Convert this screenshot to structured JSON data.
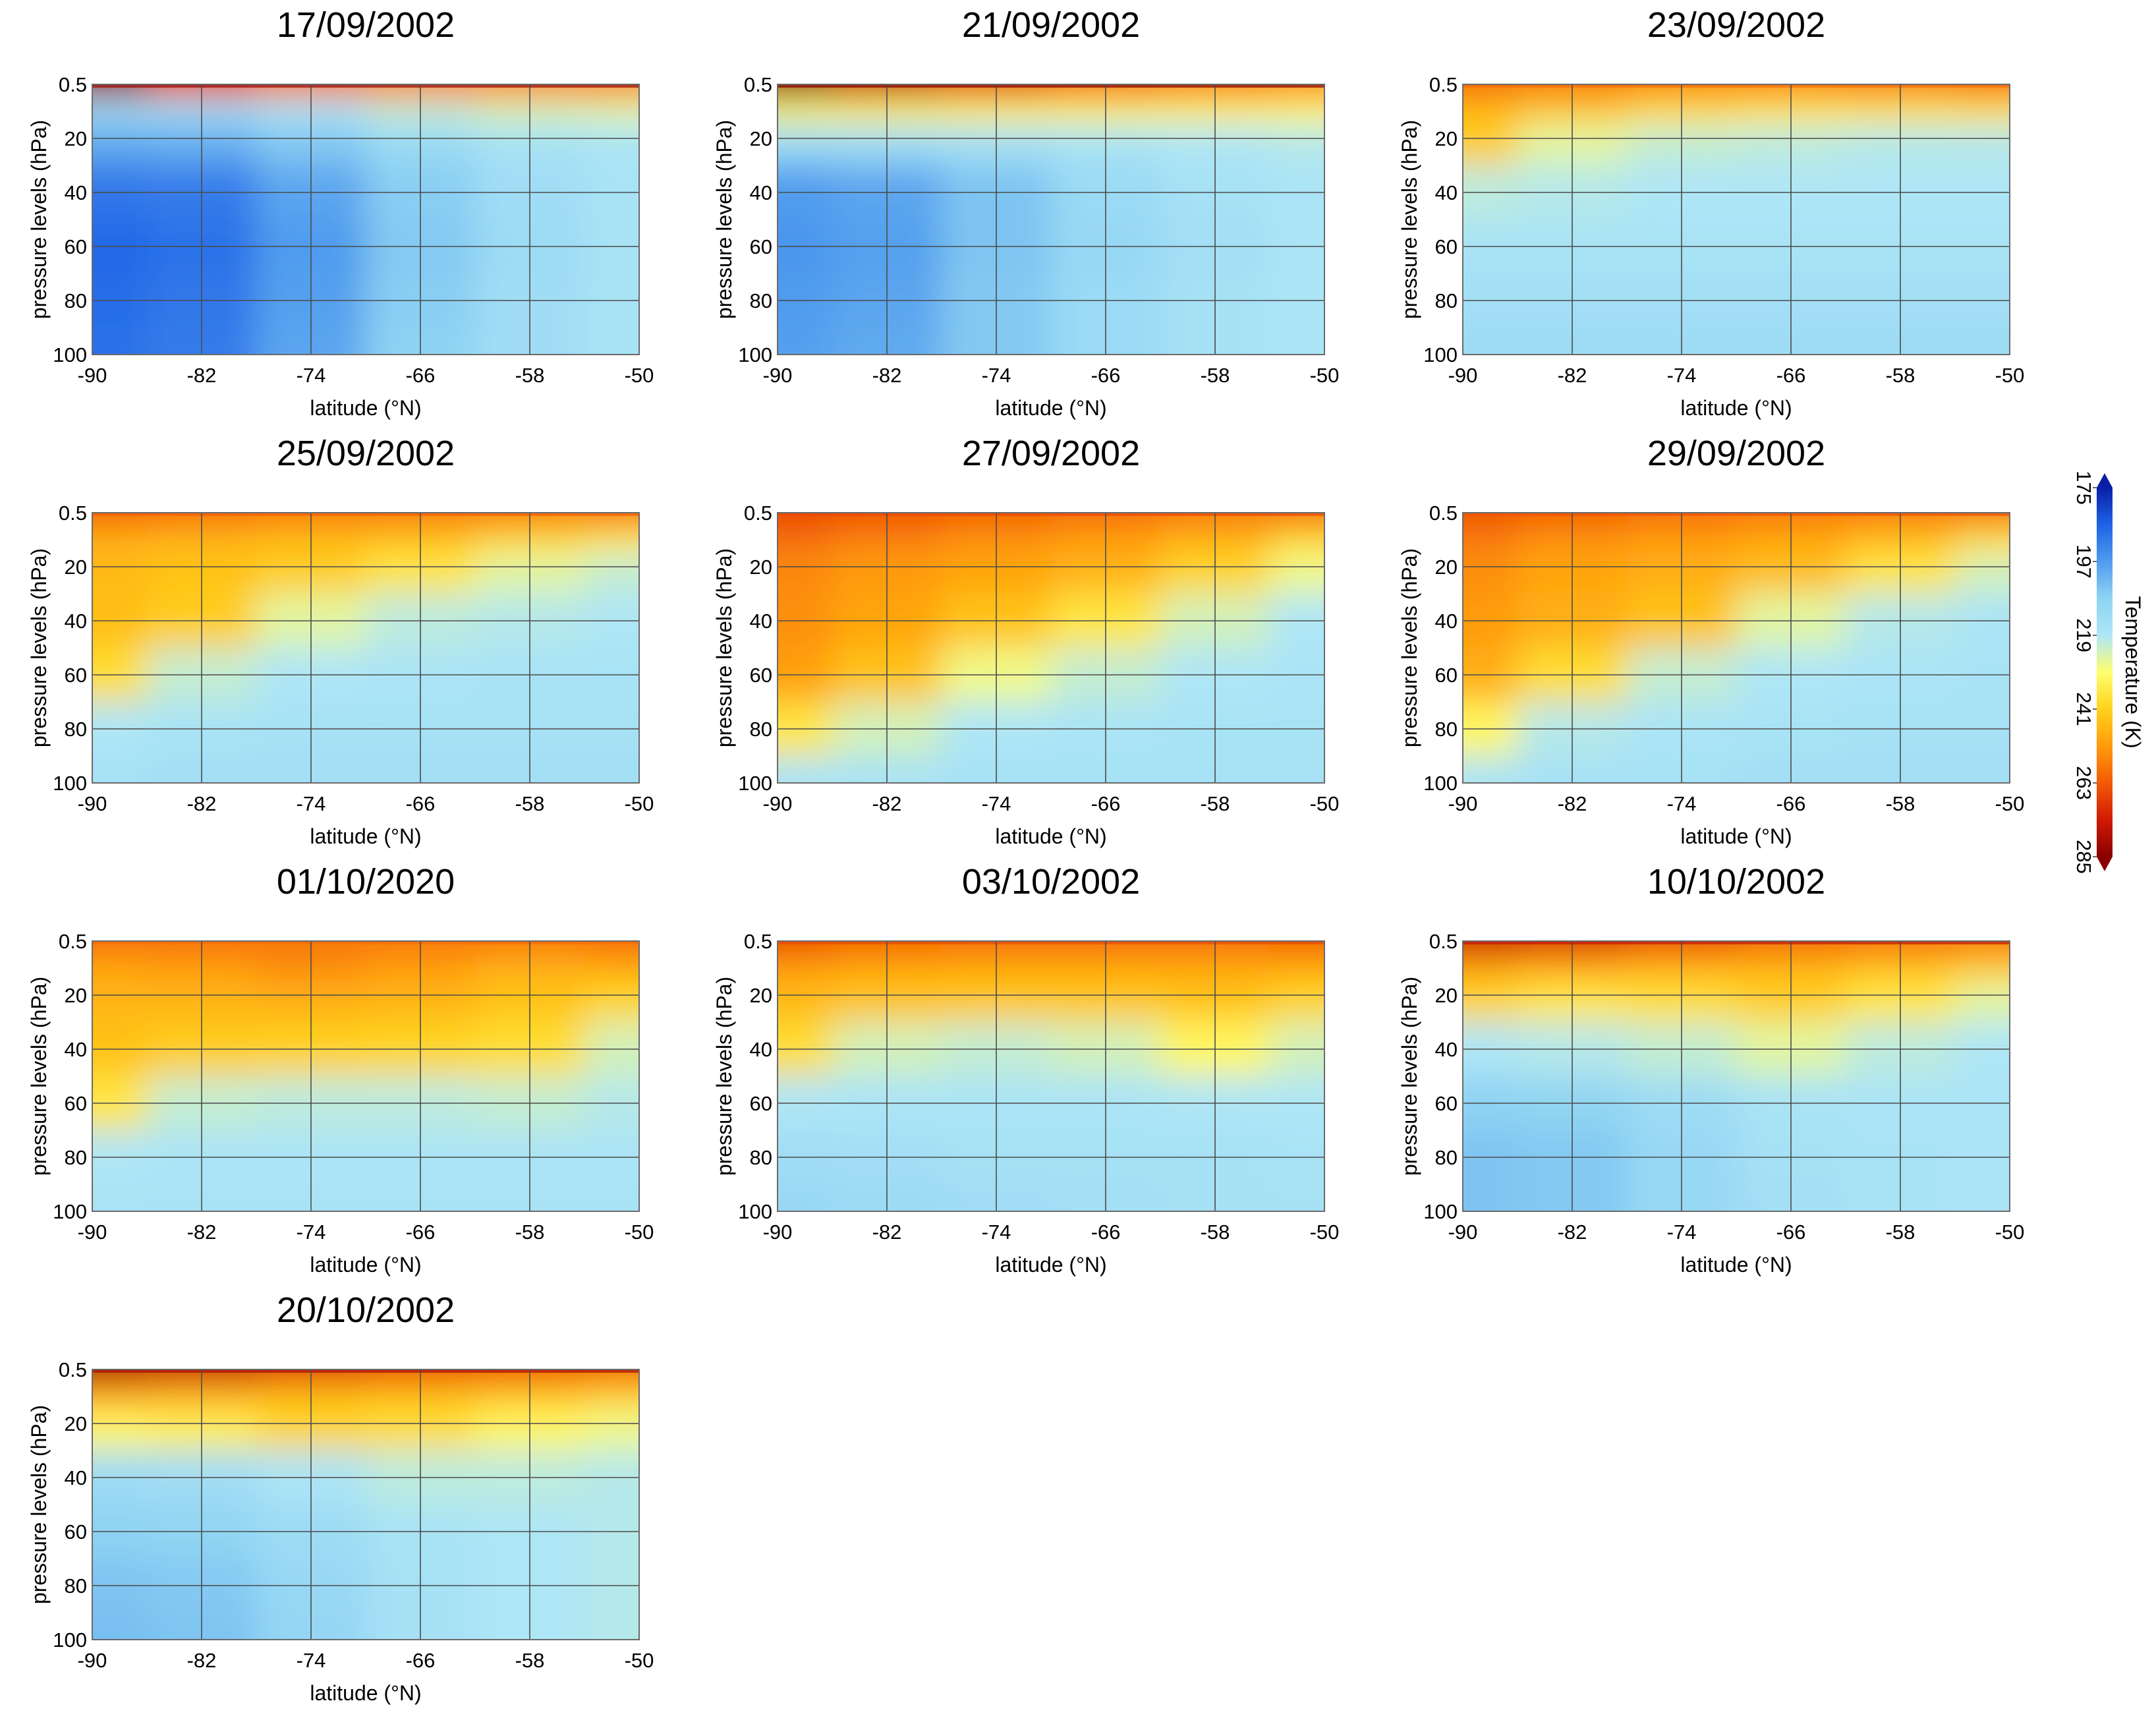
{
  "colorbar": {
    "label": "Temperature (K)",
    "ticks": [
      175,
      197,
      219,
      241,
      263,
      285
    ],
    "colors": [
      "#0a1fa8",
      "#1e63e6",
      "#4f9bee",
      "#8fd3f3",
      "#aee6f6",
      "#ffff70",
      "#ffd21c",
      "#ff9b0d",
      "#f25a05",
      "#d01a04",
      "#8a0000"
    ]
  },
  "chart_data": [
    {
      "type": "heatmap",
      "title": "17/09/2002",
      "xlabel": "latitude (°N)",
      "ylabel": "pressure levels (hPa)",
      "xticks": [
        "-90",
        "-82",
        "-74",
        "-66",
        "-58",
        "-50"
      ],
      "yticks": [
        "0.5",
        "20",
        "40",
        "60",
        "80",
        "100"
      ],
      "x": [
        -90,
        -82,
        -74,
        -66,
        -58,
        -50
      ],
      "y": [
        0.5,
        10,
        20,
        40,
        60,
        80,
        100
      ],
      "z": [
        [
          282,
          266,
          258,
          256,
          256,
          256
        ],
        [
          215,
          215,
          218,
          222,
          225,
          226
        ],
        [
          200,
          201,
          206,
          212,
          216,
          218
        ],
        [
          190,
          191,
          199,
          207,
          214,
          217
        ],
        [
          187,
          189,
          197,
          206,
          213,
          217
        ],
        [
          188,
          190,
          198,
          207,
          214,
          217
        ],
        [
          189,
          191,
          199,
          208,
          214,
          217
        ]
      ]
    },
    {
      "type": "heatmap",
      "title": "21/09/2002",
      "xlabel": "latitude (°N)",
      "ylabel": "pressure levels (hPa)",
      "xticks": [
        "-90",
        "-82",
        "-74",
        "-66",
        "-58",
        "-50"
      ],
      "yticks": [
        "0.5",
        "20",
        "40",
        "60",
        "80",
        "100"
      ],
      "x": [
        -90,
        -82,
        -74,
        -66,
        -58,
        -50
      ],
      "y": [
        0.5,
        10,
        20,
        40,
        60,
        80,
        100
      ],
      "z": [
        [
          285,
          276,
          268,
          262,
          258,
          256
        ],
        [
          232,
          233,
          233,
          233,
          233,
          232
        ],
        [
          212,
          213,
          215,
          217,
          219,
          220
        ],
        [
          197,
          199,
          205,
          212,
          216,
          218
        ],
        [
          196,
          198,
          205,
          211,
          215,
          218
        ],
        [
          197,
          199,
          206,
          212,
          216,
          218
        ],
        [
          198,
          200,
          206,
          212,
          216,
          218
        ]
      ]
    },
    {
      "type": "heatmap",
      "title": "23/09/2002",
      "xlabel": "latitude (°N)",
      "ylabel": "pressure levels (hPa)",
      "xticks": [
        "-90",
        "-82",
        "-74",
        "-66",
        "-58",
        "-50"
      ],
      "yticks": [
        "0.5",
        "20",
        "40",
        "60",
        "80",
        "100"
      ],
      "x": [
        -90,
        -82,
        -74,
        -66,
        -58,
        -50
      ],
      "y": [
        0.5,
        10,
        20,
        40,
        60,
        80,
        100
      ],
      "z": [
        [
          260,
          258,
          256,
          256,
          258,
          260
        ],
        [
          246,
          243,
          238,
          236,
          236,
          237
        ],
        [
          242,
          226,
          222,
          221,
          220,
          220
        ],
        [
          221,
          220,
          219,
          219,
          219,
          219
        ],
        [
          217,
          217,
          217,
          217,
          217,
          217
        ],
        [
          215,
          215,
          215,
          215,
          215,
          215
        ],
        [
          213,
          213,
          213,
          213,
          213,
          213
        ]
      ]
    },
    {
      "type": "heatmap",
      "title": "25/09/2002",
      "xlabel": "latitude (°N)",
      "ylabel": "pressure levels (hPa)",
      "xticks": [
        "-90",
        "-82",
        "-74",
        "-66",
        "-58",
        "-50"
      ],
      "yticks": [
        "0.5",
        "20",
        "40",
        "60",
        "80",
        "100"
      ],
      "x": [
        -90,
        -82,
        -74,
        -66,
        -58,
        -50
      ],
      "y": [
        0.5,
        10,
        20,
        40,
        60,
        80,
        100
      ],
      "z": [
        [
          262,
          260,
          258,
          258,
          258,
          260
        ],
        [
          248,
          247,
          246,
          245,
          240,
          236
        ],
        [
          246,
          244,
          242,
          236,
          226,
          222
        ],
        [
          245,
          242,
          226,
          221,
          220,
          219
        ],
        [
          238,
          222,
          219,
          218,
          217,
          217
        ],
        [
          219,
          217,
          216,
          216,
          216,
          216
        ],
        [
          216,
          215,
          215,
          215,
          215,
          215
        ]
      ]
    },
    {
      "type": "heatmap",
      "title": "27/09/2002",
      "xlabel": "latitude (°N)",
      "ylabel": "pressure levels (hPa)",
      "xticks": [
        "-90",
        "-82",
        "-74",
        "-66",
        "-58",
        "-50"
      ],
      "yticks": [
        "0.5",
        "20",
        "40",
        "60",
        "80",
        "100"
      ],
      "x": [
        -90,
        -82,
        -74,
        -66,
        -58,
        -50
      ],
      "y": [
        0.5,
        10,
        20,
        40,
        60,
        80,
        100
      ],
      "z": [
        [
          266,
          264,
          262,
          260,
          258,
          260
        ],
        [
          260,
          257,
          254,
          252,
          248,
          240
        ],
        [
          255,
          252,
          250,
          247,
          240,
          228
        ],
        [
          254,
          250,
          244,
          236,
          224,
          219
        ],
        [
          251,
          244,
          228,
          222,
          219,
          218
        ],
        [
          236,
          224,
          219,
          218,
          217,
          217
        ],
        [
          218,
          217,
          216,
          216,
          216,
          216
        ]
      ]
    },
    {
      "type": "heatmap",
      "title": "29/09/2002",
      "xlabel": "latitude (°N)",
      "ylabel": "pressure levels (hPa)",
      "xticks": [
        "-90",
        "-82",
        "-74",
        "-66",
        "-58",
        "-50"
      ],
      "yticks": [
        "0.5",
        "20",
        "40",
        "60",
        "80",
        "100"
      ],
      "x": [
        -90,
        -82,
        -74,
        -66,
        -58,
        -50
      ],
      "y": [
        0.5,
        10,
        20,
        40,
        60,
        80,
        100
      ],
      "z": [
        [
          264,
          262,
          260,
          258,
          258,
          260
        ],
        [
          258,
          254,
          252,
          250,
          246,
          238
        ],
        [
          254,
          250,
          248,
          245,
          236,
          224
        ],
        [
          252,
          248,
          244,
          226,
          220,
          218
        ],
        [
          248,
          238,
          222,
          219,
          218,
          217
        ],
        [
          232,
          220,
          218,
          217,
          216,
          216
        ],
        [
          218,
          216,
          216,
          215,
          215,
          215
        ]
      ]
    },
    {
      "type": "heatmap",
      "title": "01/10/2020",
      "xlabel": "latitude (°N)",
      "ylabel": "pressure levels (hPa)",
      "xticks": [
        "-90",
        "-82",
        "-74",
        "-66",
        "-58",
        "-50"
      ],
      "yticks": [
        "0.5",
        "20",
        "40",
        "60",
        "80",
        "100"
      ],
      "x": [
        -90,
        -82,
        -74,
        -66,
        -58,
        -50
      ],
      "y": [
        0.5,
        10,
        20,
        40,
        60,
        80,
        100
      ],
      "z": [
        [
          260,
          259,
          258,
          258,
          258,
          260
        ],
        [
          250,
          252,
          255,
          252,
          248,
          250
        ],
        [
          247,
          247,
          248,
          247,
          244,
          240
        ],
        [
          244,
          242,
          241,
          240,
          238,
          224
        ],
        [
          236,
          222,
          221,
          221,
          222,
          220
        ],
        [
          219,
          218,
          218,
          218,
          218,
          218
        ],
        [
          217,
          217,
          217,
          217,
          217,
          217
        ]
      ]
    },
    {
      "type": "heatmap",
      "title": "03/10/2002",
      "xlabel": "latitude (°N)",
      "ylabel": "pressure levels (hPa)",
      "xticks": [
        "-90",
        "-82",
        "-74",
        "-66",
        "-58",
        "-50"
      ],
      "yticks": [
        "0.5",
        "20",
        "40",
        "60",
        "80",
        "100"
      ],
      "x": [
        -90,
        -82,
        -74,
        -66,
        -58,
        -50
      ],
      "y": [
        0.5,
        10,
        20,
        40,
        60,
        80,
        100
      ],
      "z": [
        [
          266,
          262,
          260,
          260,
          260,
          262
        ],
        [
          252,
          250,
          250,
          250,
          250,
          250
        ],
        [
          246,
          244,
          243,
          243,
          244,
          240
        ],
        [
          238,
          224,
          222,
          224,
          232,
          224
        ],
        [
          219,
          218,
          218,
          218,
          219,
          219
        ],
        [
          214,
          215,
          216,
          216,
          216,
          217
        ],
        [
          211,
          212,
          214,
          215,
          216,
          216
        ]
      ]
    },
    {
      "type": "heatmap",
      "title": "10/10/2002",
      "xlabel": "latitude (°N)",
      "ylabel": "pressure levels (hPa)",
      "xticks": [
        "-90",
        "-82",
        "-74",
        "-66",
        "-58",
        "-50"
      ],
      "yticks": [
        "0.5",
        "20",
        "40",
        "60",
        "80",
        "100"
      ],
      "x": [
        -90,
        -82,
        -74,
        -66,
        -58,
        -50
      ],
      "y": [
        0.5,
        10,
        20,
        40,
        60,
        80,
        100
      ],
      "z": [
        [
          276,
          272,
          266,
          262,
          260,
          258
        ],
        [
          252,
          250,
          248,
          247,
          245,
          243
        ],
        [
          240,
          236,
          238,
          242,
          236,
          226
        ],
        [
          219,
          220,
          222,
          226,
          221,
          219
        ],
        [
          208,
          209,
          213,
          217,
          218,
          218
        ],
        [
          205,
          206,
          211,
          216,
          217,
          218
        ],
        [
          205,
          206,
          211,
          215,
          217,
          218
        ]
      ]
    },
    {
      "type": "heatmap",
      "title": "20/10/2002",
      "xlabel": "latitude (°N)",
      "ylabel": "pressure levels (hPa)",
      "xticks": [
        "-90",
        "-82",
        "-74",
        "-66",
        "-58",
        "-50"
      ],
      "yticks": [
        "0.5",
        "20",
        "40",
        "60",
        "80",
        "100"
      ],
      "x": [
        -90,
        -82,
        -74,
        -66,
        -58,
        -50
      ],
      "y": [
        0.5,
        10,
        20,
        40,
        60,
        80,
        100
      ],
      "z": [
        [
          280,
          276,
          270,
          266,
          264,
          262
        ],
        [
          250,
          248,
          246,
          245,
          244,
          242
        ],
        [
          232,
          234,
          240,
          238,
          232,
          228
        ],
        [
          213,
          214,
          218,
          221,
          221,
          220
        ],
        [
          208,
          209,
          213,
          217,
          219,
          220
        ],
        [
          205,
          206,
          211,
          216,
          219,
          220
        ],
        [
          204,
          205,
          210,
          216,
          219,
          220
        ]
      ]
    }
  ]
}
